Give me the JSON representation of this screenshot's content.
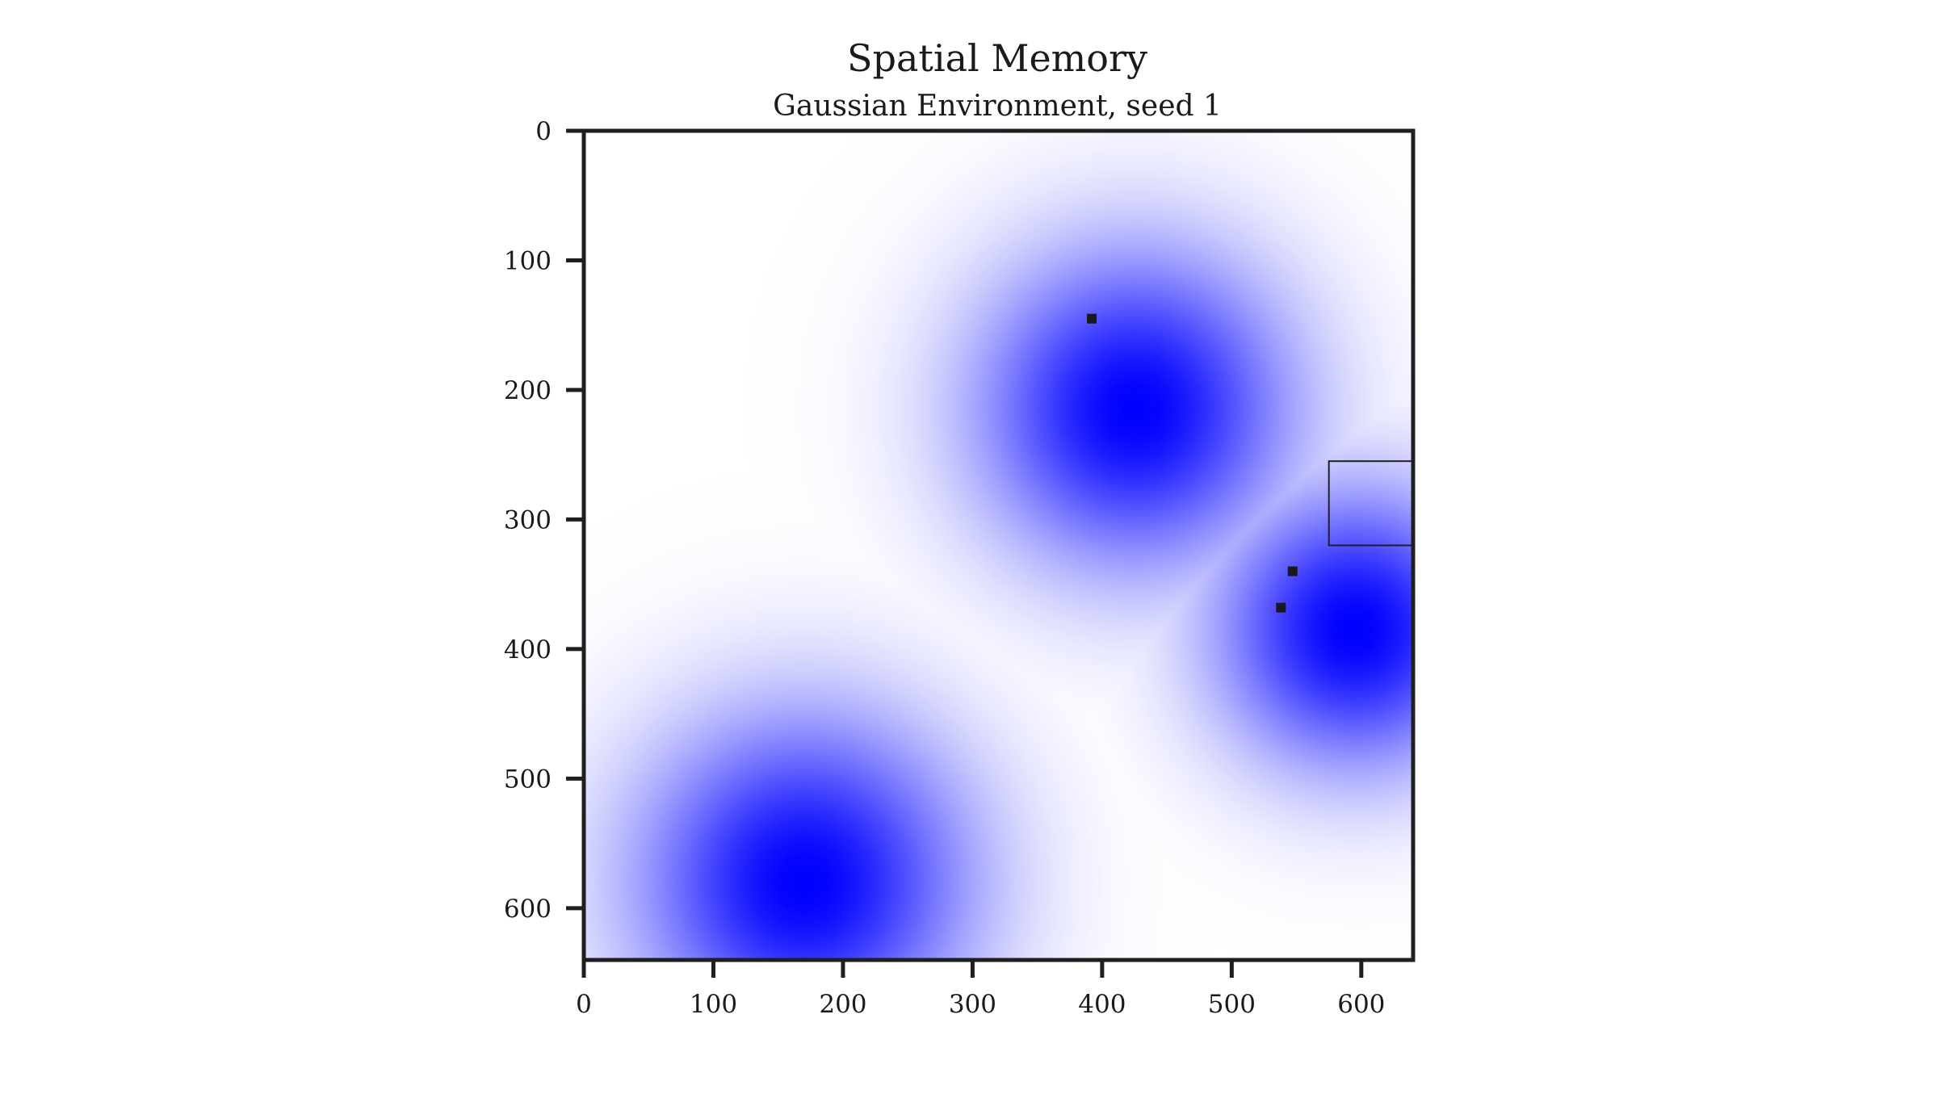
{
  "chart_data": {
    "type": "heatmap",
    "title": "Spatial Memory",
    "subtitle": "Gaussian Environment, seed 1",
    "xlabel": "",
    "ylabel": "",
    "xlim": [
      0,
      640
    ],
    "ylim": [
      640,
      0
    ],
    "y_axis_inverted": true,
    "grid": false,
    "colormap": "white-to-blue",
    "colors": {
      "low": "#ffffff",
      "high": "#0000ff",
      "axis": "#1f1f1f",
      "marker": "#1a1a1a"
    },
    "x_ticks": [
      0,
      100,
      200,
      300,
      400,
      500,
      600
    ],
    "y_ticks": [
      0,
      100,
      200,
      300,
      400,
      500,
      600
    ],
    "gaussians": [
      {
        "x": 425,
        "y": 215,
        "sigma": 85
      },
      {
        "x": 595,
        "y": 385,
        "sigma": 75
      },
      {
        "x": 170,
        "y": 580,
        "sigma": 90
      }
    ],
    "markers": [
      {
        "x": 392,
        "y": 145
      },
      {
        "x": 547,
        "y": 340
      },
      {
        "x": 538,
        "y": 368
      }
    ],
    "rectangle": {
      "x0": 575,
      "y0": 255,
      "x1": 640,
      "y1": 320
    }
  }
}
